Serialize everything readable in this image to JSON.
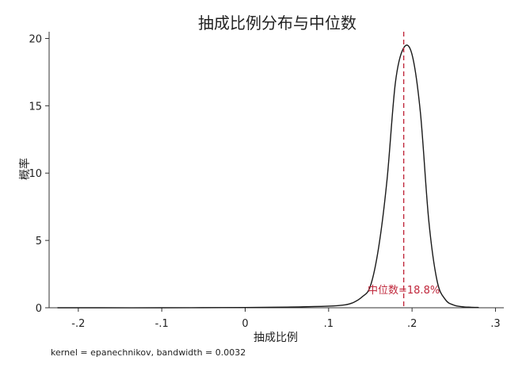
{
  "chart_data": {
    "type": "line",
    "title": "抽成比例分布与中位数",
    "xlabel": "抽成比例",
    "ylabel": "概率",
    "note": "kernel = epanechnikov, bandwidth = 0.0032",
    "xlim": [
      -0.235,
      0.31
    ],
    "ylim": [
      0,
      20.5
    ],
    "x_ticks": [
      -0.2,
      -0.1,
      0,
      0.1,
      0.2,
      0.3
    ],
    "x_tick_labels": [
      "-.2",
      "-.1",
      "0",
      ".1",
      ".2",
      ".3"
    ],
    "y_ticks": [
      0,
      5,
      10,
      15,
      20
    ],
    "y_tick_labels": [
      "0",
      "5",
      "10",
      "15",
      "20"
    ],
    "median": {
      "x": 0.19,
      "label": "中位数=18.8%",
      "color": "#c0283c"
    },
    "line_color": "#1a1a1a",
    "series": [
      {
        "x": [
          -0.225,
          -0.2,
          -0.1,
          0,
          0.05,
          0.1,
          0.12,
          0.13,
          0.14,
          0.15,
          0.16,
          0.17,
          0.18,
          0.19,
          0.2,
          0.21,
          0.22,
          0.23,
          0.24,
          0.25,
          0.26,
          0.27,
          0.28
        ],
        "y": [
          0,
          0,
          0,
          0.02,
          0.05,
          0.12,
          0.22,
          0.4,
          0.8,
          1.6,
          4.5,
          9.5,
          16.7,
          19.3,
          18.8,
          14.5,
          6.5,
          2.0,
          0.6,
          0.2,
          0.08,
          0.04,
          0.02
        ]
      }
    ]
  }
}
